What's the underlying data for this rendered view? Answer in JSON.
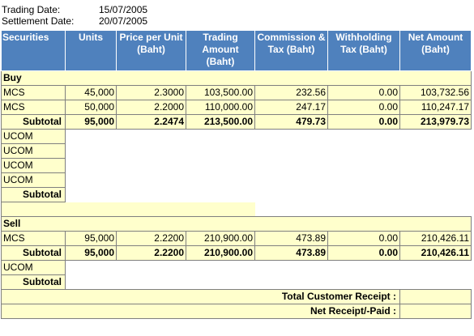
{
  "info": {
    "trading_date_label": "Trading Date:",
    "trading_date": "15/07/2005",
    "settlement_date_label": "Settlement Date:",
    "settlement_date": "20/07/2005"
  },
  "columns": {
    "securities": "Securities",
    "units": "Units",
    "price": "Price per Unit (Baht)",
    "trading": "Trading Amount (Baht)",
    "commission": "Commission & Tax (Baht)",
    "withholding": "Withholding Tax (Baht)",
    "net": "Net Amount (Baht)"
  },
  "buy": {
    "title": "Buy",
    "rows": [
      {
        "sec": "MCS",
        "units": "45,000",
        "price": "2.3000",
        "trading": "103,500.00",
        "commission": "232.56",
        "withholding": "0.00",
        "net": "103,732.56"
      },
      {
        "sec": "MCS",
        "units": "50,000",
        "price": "2.2000",
        "trading": "110,000.00",
        "commission": "247.17",
        "withholding": "0.00",
        "net": "110,247.17"
      }
    ],
    "subtotal": {
      "label": "Subtotal",
      "units": "95,000",
      "price": "2.2474",
      "trading": "213,500.00",
      "commission": "479.73",
      "withholding": "0.00",
      "net": "213,979.73"
    },
    "ucom": [
      "UCOM",
      "UCOM",
      "UCOM",
      "UCOM"
    ],
    "subtotal2_label": "Subtotal"
  },
  "sell": {
    "title": "Sell",
    "rows": [
      {
        "sec": "MCS",
        "units": "95,000",
        "price": "2.2200",
        "trading": "210,900.00",
        "commission": "473.89",
        "withholding": "0.00",
        "net": "210,426.11"
      }
    ],
    "subtotal": {
      "label": "Subtotal",
      "units": "95,000",
      "price": "2.2200",
      "trading": "210,900.00",
      "commission": "473.89",
      "withholding": "0.00",
      "net": "210,426.11"
    },
    "ucom": [
      "UCOM"
    ],
    "subtotal2_label": "Subtotal"
  },
  "totals": {
    "customer_receipt_label": "Total Customer Receipt :",
    "net_receipt_label": "Net Receipt/-Paid :"
  }
}
